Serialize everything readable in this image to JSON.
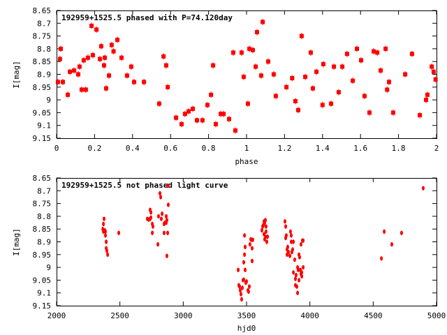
{
  "chart_data": [
    {
      "type": "scatter",
      "title": "192959+1525.5 phased with P=74.120day",
      "xlabel": "phase",
      "ylabel": "I[mag]",
      "xlim": [
        0,
        2
      ],
      "ylim": [
        8.65,
        9.15
      ],
      "y_inverted": true,
      "xticks": [
        "0",
        "0.2",
        "0.4",
        "0.6",
        "0.8",
        "1",
        "1.2",
        "1.4",
        "1.6",
        "1.8",
        "2"
      ],
      "yticks": [
        "8.65",
        "8.7",
        "8.75",
        "8.8",
        "8.85",
        "8.9",
        "8.95",
        "9",
        "9.05",
        "9.1",
        "9.15"
      ],
      "marker": "square-with-errorbar",
      "color": "#ff0000",
      "points": [
        [
          0.007,
          8.93
        ],
        [
          0.018,
          8.84
        ],
        [
          0.022,
          8.8
        ],
        [
          0.033,
          8.93
        ],
        [
          0.059,
          8.98
        ],
        [
          0.07,
          8.89
        ],
        [
          0.092,
          8.885
        ],
        [
          0.114,
          8.9
        ],
        [
          0.121,
          8.87
        ],
        [
          0.132,
          8.96
        ],
        [
          0.143,
          8.845
        ],
        [
          0.154,
          8.96
        ],
        [
          0.165,
          8.835
        ],
        [
          0.184,
          8.71
        ],
        [
          0.191,
          8.825
        ],
        [
          0.21,
          8.725
        ],
        [
          0.228,
          8.84
        ],
        [
          0.235,
          8.79
        ],
        [
          0.25,
          8.865
        ],
        [
          0.254,
          8.835
        ],
        [
          0.261,
          8.955
        ],
        [
          0.276,
          8.905
        ],
        [
          0.29,
          8.785
        ],
        [
          0.3,
          8.81
        ],
        [
          0.32,
          8.765
        ],
        [
          0.342,
          8.835
        ],
        [
          0.371,
          8.905
        ],
        [
          0.393,
          8.87
        ],
        [
          0.408,
          8.93
        ],
        [
          0.46,
          8.93
        ],
        [
          0.54,
          9.015
        ],
        [
          0.563,
          8.83
        ],
        [
          0.577,
          8.865
        ],
        [
          0.585,
          8.95
        ],
        [
          0.629,
          9.07
        ],
        [
          0.658,
          9.095
        ],
        [
          0.676,
          9.055
        ],
        [
          0.695,
          9.045
        ],
        [
          0.717,
          9.035
        ],
        [
          0.739,
          9.08
        ],
        [
          0.768,
          9.08
        ],
        [
          0.794,
          9.02
        ],
        [
          0.813,
          8.98
        ],
        [
          0.824,
          8.865
        ],
        [
          0.838,
          9.095
        ],
        [
          0.864,
          9.055
        ],
        [
          0.879,
          9.055
        ],
        [
          0.908,
          9.075
        ],
        [
          0.93,
          8.815
        ],
        [
          0.941,
          9.12
        ],
        [
          0.974,
          8.815
        ],
        [
          0.985,
          8.91
        ],
        [
          1.007,
          9.015
        ],
        [
          1.015,
          8.8
        ],
        [
          1.033,
          8.805
        ],
        [
          1.048,
          8.87
        ],
        [
          1.055,
          8.735
        ],
        [
          1.077,
          8.905
        ],
        [
          1.085,
          8.695
        ],
        [
          1.114,
          8.85
        ],
        [
          1.143,
          8.9
        ],
        [
          1.154,
          8.985
        ],
        [
          1.21,
          8.95
        ],
        [
          1.24,
          8.915
        ],
        [
          1.257,
          9.005
        ],
        [
          1.272,
          9.04
        ],
        [
          1.29,
          8.75
        ],
        [
          1.309,
          8.91
        ],
        [
          1.338,
          8.815
        ],
        [
          1.349,
          8.955
        ],
        [
          1.368,
          8.89
        ],
        [
          1.4,
          9.02
        ],
        [
          1.404,
          8.86
        ],
        [
          1.445,
          9.015
        ],
        [
          1.46,
          8.87
        ],
        [
          1.485,
          8.97
        ],
        [
          1.504,
          8.87
        ],
        [
          1.529,
          8.82
        ],
        [
          1.559,
          8.925
        ],
        [
          1.581,
          8.8
        ],
        [
          1.603,
          8.845
        ],
        [
          1.621,
          8.985
        ],
        [
          1.647,
          9.05
        ],
        [
          1.669,
          8.81
        ],
        [
          1.688,
          8.815
        ],
        [
          1.706,
          8.885
        ],
        [
          1.732,
          8.8
        ],
        [
          1.74,
          8.96
        ],
        [
          1.75,
          8.93
        ],
        [
          1.772,
          9.05
        ],
        [
          1.835,
          8.9
        ],
        [
          1.871,
          8.82
        ],
        [
          1.912,
          9.06
        ],
        [
          1.945,
          9.0
        ],
        [
          1.952,
          8.98
        ],
        [
          1.975,
          8.87
        ],
        [
          1.985,
          8.89
        ],
        [
          1.995,
          8.92
        ]
      ]
    },
    {
      "type": "scatter",
      "title": "192959+1525.5 not phased light curve",
      "xlabel": "hjd0",
      "ylabel": "I[mag]",
      "xlim": [
        2000,
        5000
      ],
      "ylim": [
        8.65,
        9.15
      ],
      "y_inverted": true,
      "xticks": [
        "2000",
        "2500",
        "3000",
        "3500",
        "4000",
        "4500",
        "5000"
      ],
      "yticks": [
        "8.65",
        "8.7",
        "8.75",
        "8.8",
        "8.85",
        "8.9",
        "8.95",
        "9",
        "9.05",
        "9.1",
        "9.15"
      ],
      "marker": "dot",
      "color": "#ff0000",
      "points": [
        [
          2375,
          8.81
        ],
        [
          2370,
          8.83
        ],
        [
          2365,
          8.85
        ],
        [
          2381,
          8.855
        ],
        [
          2386,
          8.875
        ],
        [
          2392,
          8.9
        ],
        [
          2392,
          8.925
        ],
        [
          2397,
          8.935
        ],
        [
          2403,
          8.95
        ],
        [
          2386,
          8.86
        ],
        [
          2370,
          8.86
        ],
        [
          2491,
          8.865
        ],
        [
          2717,
          8.81
        ],
        [
          2728,
          8.813
        ],
        [
          2739,
          8.81
        ],
        [
          2745,
          8.805
        ],
        [
          2739,
          8.775
        ],
        [
          2745,
          8.785
        ],
        [
          2756,
          8.83
        ],
        [
          2761,
          8.84
        ],
        [
          2756,
          8.865
        ],
        [
          2800,
          8.91
        ],
        [
          2805,
          8.8
        ],
        [
          2816,
          8.71
        ],
        [
          2822,
          8.725
        ],
        [
          2827,
          8.81
        ],
        [
          2833,
          8.79
        ],
        [
          2849,
          8.83
        ],
        [
          2849,
          8.865
        ],
        [
          2855,
          8.825
        ],
        [
          2866,
          8.825
        ],
        [
          2871,
          8.815
        ],
        [
          2877,
          8.865
        ],
        [
          2877,
          8.68
        ],
        [
          2882,
          8.755
        ],
        [
          2871,
          8.955
        ],
        [
          2866,
          8.8
        ],
        [
          3434,
          9.01
        ],
        [
          3439,
          9.07
        ],
        [
          3445,
          9.075
        ],
        [
          3450,
          9.09
        ],
        [
          3456,
          9.105
        ],
        [
          3461,
          9.125
        ],
        [
          3467,
          9.08
        ],
        [
          3472,
          9.05
        ],
        [
          3478,
          9.048
        ],
        [
          3484,
          8.875
        ],
        [
          3489,
          8.92
        ],
        [
          3484,
          8.95
        ],
        [
          3478,
          8.98
        ],
        [
          3489,
          9.01
        ],
        [
          3494,
          9.06
        ],
        [
          3500,
          9.055
        ],
        [
          3511,
          9.09
        ],
        [
          3516,
          9.095
        ],
        [
          3522,
          9.075
        ],
        [
          3527,
          8.91
        ],
        [
          3533,
          8.89
        ],
        [
          3538,
          8.892
        ],
        [
          3549,
          8.892
        ],
        [
          3544,
          8.975
        ],
        [
          3544,
          8.925
        ],
        [
          3621,
          8.855
        ],
        [
          3627,
          8.84
        ],
        [
          3632,
          8.835
        ],
        [
          3638,
          8.82
        ],
        [
          3643,
          8.825
        ],
        [
          3649,
          8.815
        ],
        [
          3654,
          8.84
        ],
        [
          3638,
          8.87
        ],
        [
          3643,
          8.89
        ],
        [
          3649,
          8.88
        ],
        [
          3660,
          8.9
        ],
        [
          3666,
          8.88
        ],
        [
          3654,
          8.86
        ],
        [
          3803,
          8.82
        ],
        [
          3809,
          8.84
        ],
        [
          3814,
          8.875
        ],
        [
          3809,
          8.885
        ],
        [
          3820,
          8.93
        ],
        [
          3820,
          8.95
        ],
        [
          3825,
          8.92
        ],
        [
          3831,
          8.94
        ],
        [
          3842,
          8.955
        ],
        [
          3847,
          8.86
        ],
        [
          3853,
          8.875
        ],
        [
          3853,
          8.9
        ],
        [
          3858,
          8.94
        ],
        [
          3864,
          8.93
        ],
        [
          3870,
          8.9
        ],
        [
          3870,
          9.02
        ],
        [
          3880,
          8.97
        ],
        [
          3886,
          9.07
        ],
        [
          3886,
          9.045
        ],
        [
          3891,
          9.03
        ],
        [
          3903,
          9.0
        ],
        [
          3897,
          9.075
        ],
        [
          3908,
          9.01
        ],
        [
          3914,
          8.95
        ],
        [
          3919,
          8.96
        ],
        [
          3925,
          9.01
        ],
        [
          3930,
          9.025
        ],
        [
          3936,
          9.02
        ],
        [
          3930,
          8.91
        ],
        [
          3941,
          8.895
        ],
        [
          3947,
          8.895
        ],
        [
          3947,
          9.0
        ],
        [
          3936,
          9.035
        ],
        [
          3914,
          9.05
        ],
        [
          3903,
          9.1
        ],
        [
          4565,
          8.965
        ],
        [
          4587,
          8.86
        ],
        [
          4647,
          8.91
        ],
        [
          4724,
          8.865
        ],
        [
          4895,
          8.69
        ]
      ]
    }
  ]
}
